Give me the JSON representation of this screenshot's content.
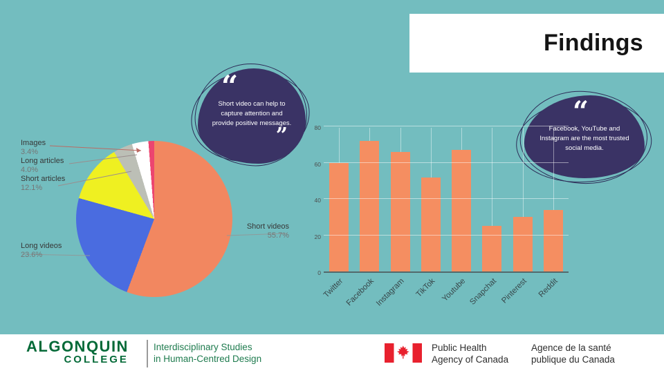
{
  "slide": {
    "title": "Findings",
    "colors": {
      "background": "#73BDBF",
      "bubble_fill": "#3A3365",
      "bubble_outline": "#2C2A56",
      "title_text": "#141414",
      "algonquin_green": "#046A38",
      "tagline_green": "#1E7B4E",
      "flag_red": "#E8212E"
    }
  },
  "quote_bubbles": [
    {
      "open_quote": "“",
      "text": "Short video can help to capture attention and provide positive messages.",
      "close_quote": "”"
    },
    {
      "open_quote": "“",
      "text": "Facebook, YouTube and Instagram are the most trusted social media."
    }
  ],
  "chart_data": [
    {
      "type": "pie",
      "labels": [
        "Short videos",
        "Long videos",
        "Short articles",
        "Long articles",
        "Images",
        ""
      ],
      "values": [
        55.7,
        23.6,
        12.1,
        4.0,
        3.4,
        1.2
      ],
      "colors": [
        "#F28760",
        "#4A6CE0",
        "#EFF021",
        "#BCBFB6",
        "#FFFFFF",
        "#EC4570"
      ],
      "start_angle_deg": 0,
      "direction": "clockwise",
      "callouts": {
        "images": {
          "label": "Images",
          "value": "3.4%"
        },
        "long_articles": {
          "label": "Long articles",
          "value": "4.0%"
        },
        "short_articles": {
          "label": "Short articles",
          "value": "12.1%"
        },
        "long_videos": {
          "label": "Long videos",
          "value": "23.6%"
        },
        "short_videos": {
          "label": "Short videos",
          "value": "55.7%"
        }
      }
    },
    {
      "type": "bar",
      "categories": [
        "Twitter",
        "Facebook",
        "Instagram",
        "TikTok",
        "Youtube",
        "Snapchat",
        "Pinterest",
        "Reddit"
      ],
      "values": [
        60,
        72,
        66,
        52,
        67,
        25,
        30,
        34
      ],
      "bar_color": "#F58E61",
      "ylim": [
        0,
        80
      ],
      "yticks": [
        0,
        20,
        40,
        60,
        80
      ],
      "grid": true,
      "x_label_rotation": 45,
      "legend": false
    }
  ],
  "footer": {
    "algonquin": {
      "line1": "ALGONQUIN",
      "line2": "COLLEGE",
      "tagline_line1": "Interdisciplinary Studies",
      "tagline_line2": "in Human-Centred Design"
    },
    "canada": {
      "english_line1": "Public Health",
      "english_line2": "Agency of Canada",
      "french_line1": "Agence de la santé",
      "french_line2": "publique du Canada"
    }
  }
}
